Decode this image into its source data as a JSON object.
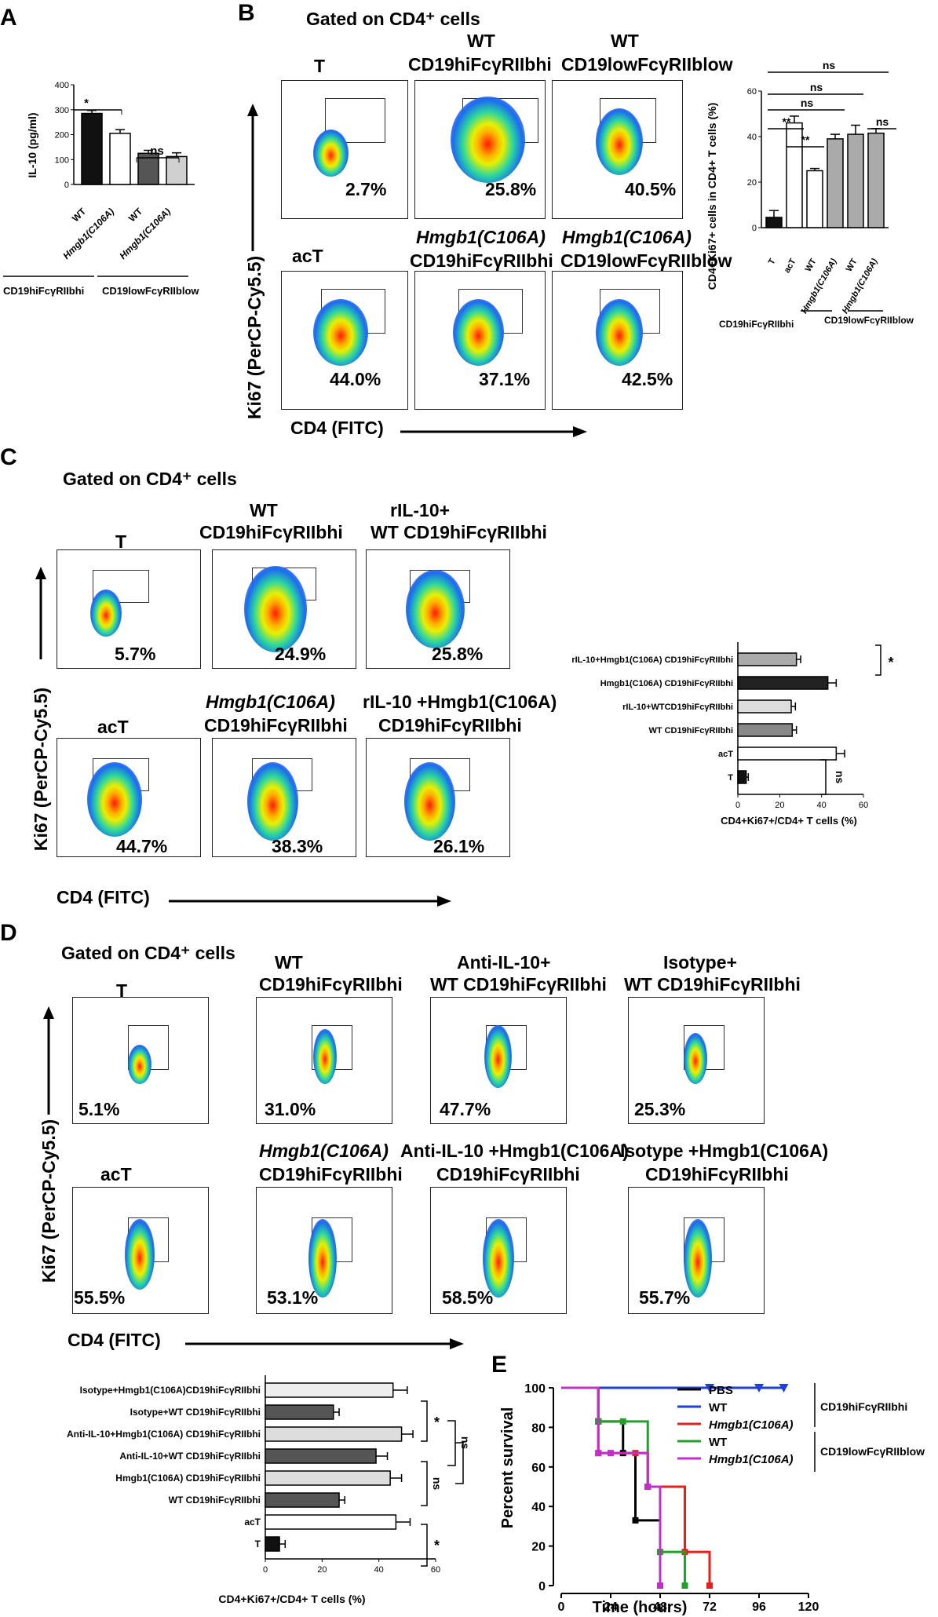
{
  "panel_labels": {
    "a": "A",
    "b": "B",
    "c": "C",
    "d": "D",
    "e": "E"
  },
  "chart_data": [
    {
      "type": "bar",
      "panel": "A",
      "ylabel": "IL-10 (pg/ml)",
      "ylim": [
        0,
        400
      ],
      "yticks": [
        "0",
        "100",
        "200",
        "300",
        "400"
      ],
      "categories": [
        "WT",
        "Hmgb1(C106A)",
        "WT",
        "Hmgb1(C106A)"
      ],
      "values": [
        285,
        205,
        125,
        112
      ],
      "errors": [
        12,
        15,
        12,
        15
      ],
      "colors": [
        "#111111",
        "#ffffff",
        "#555555",
        "#d0d0d0"
      ],
      "groups": [
        "CD19hiFcγRIIbhi",
        "CD19lowFcγRIIblow"
      ],
      "annotations": [
        "*",
        "ns"
      ]
    },
    {
      "type": "bar",
      "panel": "B",
      "ylabel": "CD4+Ki67+ cells in CD4+ T cells (%)",
      "ylim": [
        0,
        60
      ],
      "yticks": [
        "0",
        "20",
        "40",
        "60"
      ],
      "categories": [
        "T",
        "acT",
        "WT",
        "Hmgb1(C106A)",
        "WT",
        "Hmgb1(C106A)"
      ],
      "values": [
        4.5,
        46,
        25,
        39,
        41,
        41.5
      ],
      "errors": [
        3,
        3,
        1,
        2,
        4,
        2
      ],
      "colors": [
        "#111111",
        "#ffffff",
        "#ffffff",
        "#aaaaaa",
        "#aaaaaa",
        "#aaaaaa"
      ],
      "groups": [
        "CD19hiFcγRIIbhi",
        "CD19lowFcγRIIblow"
      ],
      "annotations": [
        "ns",
        "ns",
        "ns",
        "**",
        "**",
        "ns"
      ]
    },
    {
      "type": "bar",
      "orientation": "horizontal",
      "panel": "C",
      "xlabel": "CD4+Ki67+/CD4+ T cells (%)",
      "xlim": [
        0,
        60
      ],
      "xticks": [
        "0",
        "20",
        "40",
        "60"
      ],
      "categories": [
        "T",
        "acT",
        "WT CD19hiFcγRIIbhi",
        "rIL-10+WTCD19hiFcγRIIbhi",
        "Hmgb1(C106A) CD19hiFcγRIIbhi",
        "rIL-10+Hmgb1(C106A) CD19hiFcγRIIbhi"
      ],
      "values": [
        4,
        47,
        26,
        25.5,
        43,
        28
      ],
      "errors": [
        1,
        4,
        2,
        2,
        4,
        2
      ],
      "colors": [
        "#111111",
        "#ffffff",
        "#888888",
        "#dddddd",
        "#222222",
        "#aaaaaa"
      ],
      "annotations": [
        "ns",
        "*"
      ]
    },
    {
      "type": "bar",
      "orientation": "horizontal",
      "panel": "D",
      "xlabel": "CD4+Ki67+/CD4+ T cells (%)",
      "xlim": [
        0,
        60
      ],
      "xticks": [
        "0",
        "20",
        "40",
        "60"
      ],
      "categories": [
        "T",
        "acT",
        "WT CD19hiFcγRIIbhi",
        "Hmgb1(C106A) CD19hiFcγRIIbhi",
        "Anti-IL-10+WT CD19hiFcγRIIbhi",
        "Anti-IL-10+Hmgb1(C106A) CD19hiFcγRIIbhi",
        "Isotype+WT CD19hiFcγRIIbhi",
        "Isotype+Hmgb1(C106A)CD19hiFcγRIIbhi"
      ],
      "values": [
        5,
        46,
        26,
        44,
        39,
        48,
        24,
        45
      ],
      "errors": [
        2,
        5,
        2,
        4,
        4,
        4,
        2,
        5
      ],
      "colors": [
        "#111111",
        "#ffffff",
        "#555555",
        "#dddddd",
        "#555555",
        "#dddddd",
        "#555555",
        "#eeeeee"
      ],
      "annotations": [
        "*",
        "ns",
        "ns",
        "*",
        "*"
      ]
    },
    {
      "type": "line",
      "panel": "E",
      "title": "",
      "xlabel": "Time (hours)",
      "ylabel": "Percent survival",
      "xlim": [
        0,
        120
      ],
      "ylim": [
        0,
        100
      ],
      "xticks": [
        "0",
        "24",
        "48",
        "72",
        "96",
        "120"
      ],
      "yticks": [
        "0",
        "20",
        "40",
        "60",
        "80",
        "100"
      ],
      "series": [
        {
          "name": "PBS",
          "color": "#000000",
          "x": [
            0,
            18,
            18,
            30,
            30,
            36,
            36,
            48,
            48
          ],
          "y": [
            100,
            100,
            83,
            83,
            67,
            67,
            33,
            33,
            0
          ]
        },
        {
          "name": "WT",
          "color": "#1f3fd8",
          "x": [
            0,
            108
          ],
          "y": [
            100,
            100
          ]
        },
        {
          "name": "Hmgb1(C106A)",
          "color": "#e8201c",
          "x": [
            0,
            18,
            18,
            36,
            36,
            42,
            42,
            60,
            60,
            72,
            72
          ],
          "y": [
            100,
            100,
            67,
            67,
            67,
            67,
            50,
            50,
            17,
            17,
            0
          ]
        },
        {
          "name": "WT",
          "color": "#22a02a",
          "x": [
            0,
            18,
            18,
            30,
            30,
            42,
            42,
            48,
            48,
            60,
            60
          ],
          "y": [
            100,
            100,
            83,
            83,
            83,
            83,
            50,
            50,
            17,
            17,
            0
          ]
        },
        {
          "name": "Hmgb1(C106A)",
          "color": "#c030c8",
          "x": [
            0,
            18,
            18,
            24,
            24,
            42,
            42,
            48,
            48
          ],
          "y": [
            100,
            100,
            67,
            67,
            67,
            67,
            50,
            50,
            0
          ]
        }
      ],
      "legend_groups": [
        "CD19hiFcγRIIbhi",
        "CD19lowFcγRIIblow"
      ]
    }
  ],
  "panel_b": {
    "gated": "Gated on CD4⁺ cells",
    "headers": [
      "T",
      "WT",
      "CD19hiFcγRIIbhi",
      "WT",
      "CD19lowFcγRIIblow",
      "acT",
      "Hmgb1(C106A)",
      "CD19hiFcγRIIbhi",
      "Hmgb1(C106A)",
      "CD19lowFcγRIIblow"
    ],
    "percents": [
      "2.7%",
      "25.8%",
      "40.5%",
      "44.0%",
      "37.1%",
      "42.5%"
    ],
    "y_axis": "Ki67 (PerCP-Cy5.5)",
    "x_axis": "CD4 (FITC)"
  },
  "panel_c": {
    "gated": "Gated on CD4⁺ cells",
    "headers": [
      "T",
      "WT",
      "CD19hiFcγRIIbhi",
      "rIL-10+",
      "WT CD19hiFcγRIIbhi",
      "acT",
      "Hmgb1(C106A)",
      "CD19hiFcγRIIbhi",
      "rIL-10 +Hmgb1(C106A)",
      "CD19hiFcγRIIbhi"
    ],
    "percents": [
      "5.7%",
      "24.9%",
      "25.8%",
      "44.7%",
      "38.3%",
      "26.1%"
    ],
    "y_axis": "Ki67 (PerCP-Cy5.5)",
    "x_axis": "CD4 (FITC)"
  },
  "panel_d": {
    "gated": "Gated on CD4⁺ cells",
    "headers": [
      "T",
      "WT",
      "CD19hiFcγRIIbhi",
      "Anti-IL-10+",
      "WT CD19hiFcγRIIbhi",
      "Isotype+",
      "WT CD19hiFcγRIIbhi",
      "acT",
      "Hmgb1(C106A)",
      "CD19hiFcγRIIbhi",
      "Anti-IL-10 +Hmgb1(C106A)",
      "CD19hiFcγRIIbhi",
      "Isotype +Hmgb1(C106A)",
      "CD19hiFcγRIIbhi"
    ],
    "percents": [
      "5.1%",
      "31.0%",
      "47.7%",
      "25.3%",
      "55.5%",
      "53.1%",
      "58.5%",
      "55.7%"
    ],
    "y_axis": "Ki67 (PerCP-Cy5.5)",
    "x_axis": "CD4 (FITC)"
  },
  "legend_e": [
    "PBS",
    "WT",
    "Hmgb1(C106A)",
    "WT",
    "Hmgb1(C106A)",
    "CD19hiFcγRIIbhi",
    "CD19lowFcγRIIblow"
  ]
}
